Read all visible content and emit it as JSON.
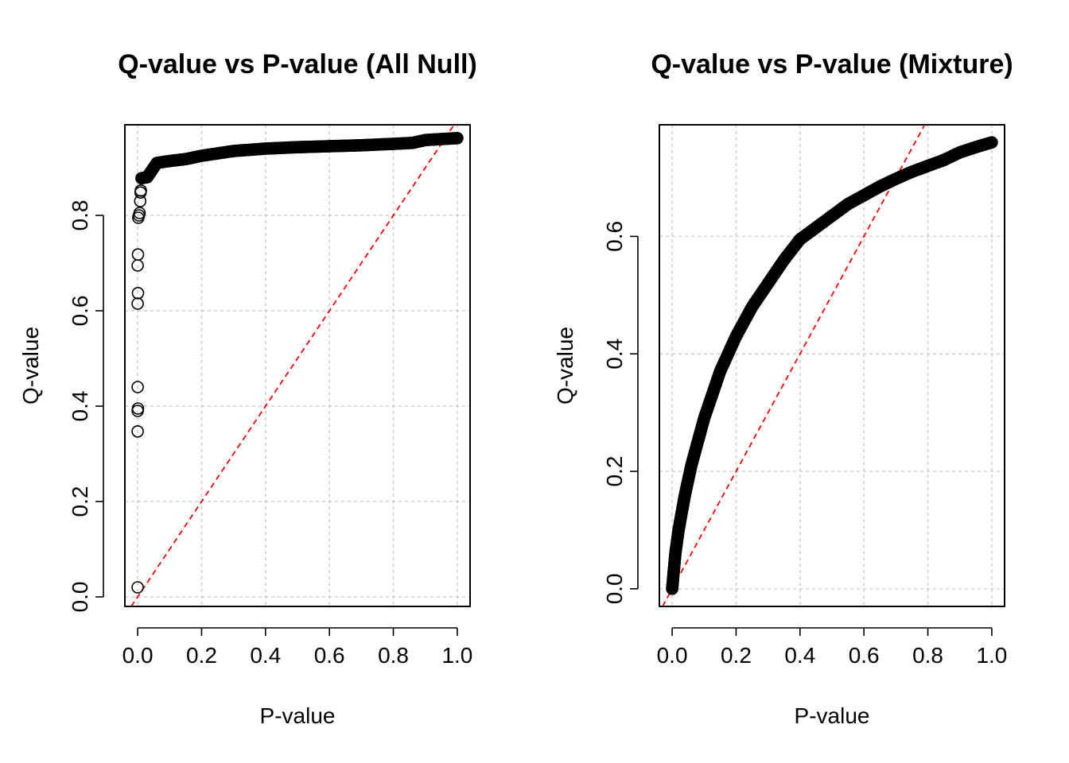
{
  "chart_data": [
    {
      "type": "scatter",
      "title": "Q-value vs P-value (All Null)",
      "xlabel": "P-value",
      "ylabel": "Q-value",
      "xlim": [
        -0.04,
        1.04
      ],
      "ylim": [
        -0.02,
        0.99
      ],
      "xticks": [
        0.0,
        0.2,
        0.4,
        0.6,
        0.8,
        1.0
      ],
      "xtick_labels": [
        "0.0",
        "0.2",
        "0.4",
        "0.6",
        "0.8",
        "1.0"
      ],
      "yticks": [
        0.0,
        0.2,
        0.4,
        0.6,
        0.8
      ],
      "ytick_labels": [
        "0.0",
        "0.2",
        "0.4",
        "0.6",
        "0.8"
      ],
      "grid": true,
      "reference_line": {
        "type": "y=x",
        "color": "#ff0000",
        "style": "dashed"
      },
      "outliers": [
        {
          "x": 0.0,
          "y": 0.02
        },
        {
          "x": 0.0,
          "y": 0.347
        },
        {
          "x": 0.0,
          "y": 0.39
        },
        {
          "x": 0.001,
          "y": 0.395
        },
        {
          "x": 0.0,
          "y": 0.44
        },
        {
          "x": 0.0,
          "y": 0.615
        },
        {
          "x": 0.001,
          "y": 0.637
        },
        {
          "x": 0.0,
          "y": 0.695
        },
        {
          "x": 0.001,
          "y": 0.718
        },
        {
          "x": 0.002,
          "y": 0.795
        },
        {
          "x": 0.004,
          "y": 0.8
        },
        {
          "x": 0.006,
          "y": 0.805
        },
        {
          "x": 0.008,
          "y": 0.83
        },
        {
          "x": 0.009,
          "y": 0.848
        },
        {
          "x": 0.01,
          "y": 0.852
        }
      ],
      "curve": [
        {
          "x": 0.012,
          "y": 0.878
        },
        {
          "x": 0.03,
          "y": 0.88
        },
        {
          "x": 0.045,
          "y": 0.895
        },
        {
          "x": 0.06,
          "y": 0.91
        },
        {
          "x": 0.1,
          "y": 0.914
        },
        {
          "x": 0.15,
          "y": 0.918
        },
        {
          "x": 0.2,
          "y": 0.925
        },
        {
          "x": 0.3,
          "y": 0.935
        },
        {
          "x": 0.4,
          "y": 0.94
        },
        {
          "x": 0.5,
          "y": 0.943
        },
        {
          "x": 0.6,
          "y": 0.945
        },
        {
          "x": 0.7,
          "y": 0.947
        },
        {
          "x": 0.8,
          "y": 0.95
        },
        {
          "x": 0.86,
          "y": 0.952
        },
        {
          "x": 0.9,
          "y": 0.958
        },
        {
          "x": 0.95,
          "y": 0.96
        },
        {
          "x": 1.0,
          "y": 0.962
        }
      ]
    },
    {
      "type": "scatter",
      "title": "Q-value vs P-value (Mixture)",
      "xlabel": "P-value",
      "ylabel": "Q-value",
      "xlim": [
        -0.04,
        1.04
      ],
      "ylim": [
        -0.03,
        0.79
      ],
      "xticks": [
        0.0,
        0.2,
        0.4,
        0.6,
        0.8,
        1.0
      ],
      "xtick_labels": [
        "0.0",
        "0.2",
        "0.4",
        "0.6",
        "0.8",
        "1.0"
      ],
      "yticks": [
        0.0,
        0.2,
        0.4,
        0.6
      ],
      "ytick_labels": [
        "0.0",
        "0.2",
        "0.4",
        "0.6"
      ],
      "grid": true,
      "reference_line": {
        "type": "y=x",
        "color": "#ff0000",
        "style": "dashed"
      },
      "outliers": [],
      "curve": [
        {
          "x": 0.0,
          "y": 0.0
        },
        {
          "x": 0.005,
          "y": 0.03
        },
        {
          "x": 0.01,
          "y": 0.06
        },
        {
          "x": 0.02,
          "y": 0.1
        },
        {
          "x": 0.04,
          "y": 0.16
        },
        {
          "x": 0.06,
          "y": 0.21
        },
        {
          "x": 0.08,
          "y": 0.25
        },
        {
          "x": 0.1,
          "y": 0.29
        },
        {
          "x": 0.15,
          "y": 0.37
        },
        {
          "x": 0.2,
          "y": 0.43
        },
        {
          "x": 0.25,
          "y": 0.48
        },
        {
          "x": 0.3,
          "y": 0.52
        },
        {
          "x": 0.35,
          "y": 0.56
        },
        {
          "x": 0.4,
          "y": 0.595
        },
        {
          "x": 0.45,
          "y": 0.615
        },
        {
          "x": 0.5,
          "y": 0.635
        },
        {
          "x": 0.55,
          "y": 0.655
        },
        {
          "x": 0.6,
          "y": 0.67
        },
        {
          "x": 0.65,
          "y": 0.685
        },
        {
          "x": 0.7,
          "y": 0.698
        },
        {
          "x": 0.75,
          "y": 0.71
        },
        {
          "x": 0.8,
          "y": 0.72
        },
        {
          "x": 0.85,
          "y": 0.73
        },
        {
          "x": 0.9,
          "y": 0.743
        },
        {
          "x": 0.95,
          "y": 0.752
        },
        {
          "x": 1.0,
          "y": 0.76
        }
      ]
    }
  ]
}
